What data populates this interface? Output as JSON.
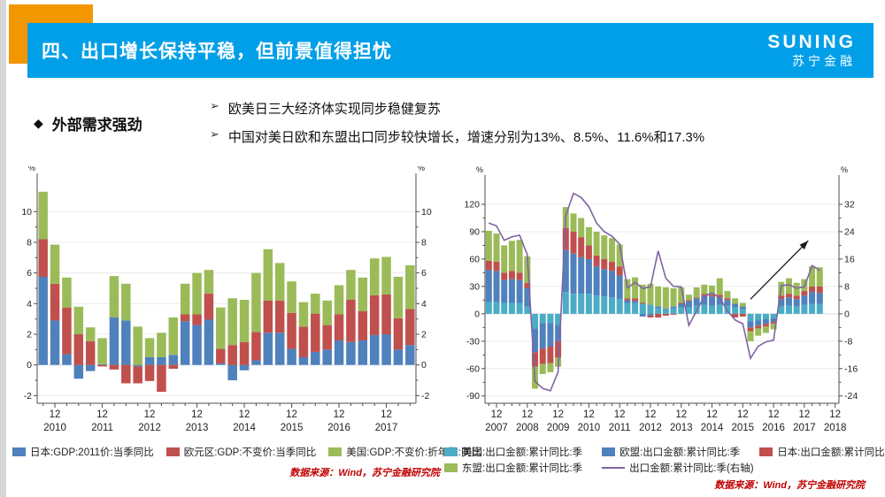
{
  "header": {
    "title": "四、出口增长保持平稳，但前景值得担忧",
    "logo_line1": "SUNING",
    "logo_line2": "苏宁金融"
  },
  "bullets": {
    "main_marker": "◆",
    "main": "外部需求强劲",
    "sub_marker": "➢",
    "items": [
      "欧美日三大经济体实现同步稳健复苏",
      "中国对美日欧和东盟出口同步较快增长，增速分别为13%、8.5%、11.6%和17.3%"
    ]
  },
  "sources": {
    "left": "数据来源：Wind，苏宁金融研究院",
    "right": "数据来源：Wind，苏宁金融研究院"
  },
  "colors": {
    "banner_blue": "#009fe8",
    "accent_orange": "#f39700",
    "source_red": "#c00000",
    "grid": "#ececec",
    "axis": "#4d4d4d"
  },
  "chart_data": [
    {
      "type": "bar",
      "stacked": true,
      "unit": "%",
      "categories_note": "quarterly, 2010Q3-2018Q2, December ticks labelled 12",
      "x_tick_label": "12",
      "x_years": [
        "2010",
        "2011",
        "2012",
        "2013",
        "2014",
        "2015",
        "2016",
        "2017"
      ],
      "dec_slots": [
        2,
        6,
        10,
        14,
        18,
        22,
        26,
        30
      ],
      "ylim": [
        -2.5,
        12.5
      ],
      "yticks_left": [
        -2,
        0,
        2,
        4,
        6,
        8,
        10
      ],
      "yticks_right": [
        -2,
        0,
        2,
        4,
        6,
        8,
        10
      ],
      "right_factor": 1,
      "series": [
        {
          "name": "日本:GDP:2011价:当季同比",
          "color": "#4f81bd",
          "values": [
            5.75,
            2.9,
            0.7,
            -0.9,
            -0.4,
            0.05,
            3.1,
            2.9,
            -0.1,
            0.5,
            0.5,
            0.65,
            2.85,
            2.6,
            2.95,
            0.1,
            -1.0,
            -0.35,
            0.3,
            2.1,
            2.1,
            1.05,
            0.5,
            0.85,
            1.0,
            1.6,
            1.5,
            1.6,
            1.95,
            2.0,
            1.0,
            1.3
          ]
        },
        {
          "name": "欧元区:GDP:不变价:当季同比",
          "color": "#c0504d",
          "values": [
            2.45,
            2.4,
            3.05,
            2.0,
            1.55,
            -0.1,
            -0.3,
            -1.2,
            -1.1,
            -1.05,
            -1.75,
            -0.25,
            0.45,
            0.7,
            1.7,
            0.95,
            1.3,
            1.5,
            1.85,
            2.1,
            2.1,
            2.35,
            2.0,
            2.5,
            1.6,
            1.7,
            2.75,
            1.9,
            2.6,
            2.6,
            2.05,
            2.35
          ]
        },
        {
          "name": "美国:GDP:不变价:折年数:同比",
          "color": "#9bbb59",
          "values": [
            3.1,
            2.55,
            1.95,
            1.8,
            0.9,
            1.7,
            2.7,
            2.4,
            2.5,
            1.25,
            1.6,
            2.45,
            2.0,
            2.7,
            1.55,
            2.7,
            3.05,
            2.75,
            3.85,
            3.35,
            2.45,
            2.05,
            1.6,
            1.3,
            1.6,
            1.9,
            1.95,
            2.2,
            2.4,
            2.45,
            2.7,
            2.85
          ]
        }
      ]
    },
    {
      "type": "bar+line",
      "stacked": true,
      "unit": "%",
      "categories_note": "quarterly, 2007Q3-2018Q2, December ticks labelled 12",
      "x_tick_label": "12",
      "x_years": [
        "2007",
        "2008",
        "2009",
        "2010",
        "2011",
        "2012",
        "2013",
        "2014",
        "2015",
        "2016",
        "2017",
        "2018"
      ],
      "dec_slots": [
        2,
        6,
        10,
        14,
        18,
        22,
        26,
        30,
        34,
        38,
        42,
        46
      ],
      "ylim": [
        -98,
        152
      ],
      "yticks_left": [
        -90,
        -60,
        -30,
        0,
        30,
        60,
        90,
        120
      ],
      "yticks_right": [
        -24,
        -16,
        -8,
        0,
        8,
        16,
        24,
        32
      ],
      "right_factor": 3.75,
      "series": [
        {
          "name": "美国:出口金额:累计同比:季",
          "color": "#4bacc6",
          "values": [
            13,
            13,
            12,
            12,
            12,
            8,
            -16,
            -10,
            -10,
            -12,
            24,
            22,
            22,
            22,
            20,
            19,
            18,
            16,
            12,
            12,
            11,
            10,
            6,
            5,
            6,
            7,
            7,
            9,
            10,
            9,
            10,
            9,
            7,
            5,
            -8,
            -7,
            -6,
            -5,
            8,
            9,
            8,
            10,
            11,
            11
          ]
        },
        {
          "name": "欧盟:出口金额:累计同比:季",
          "color": "#4f81bd",
          "values": [
            35,
            34,
            25,
            26,
            25,
            20,
            -26,
            -28,
            -26,
            -18,
            46,
            44,
            40,
            38,
            32,
            30,
            29,
            26,
            3,
            2,
            -3,
            -2,
            2,
            1,
            2,
            4,
            7,
            8,
            10,
            10,
            8,
            6,
            4,
            3,
            -7,
            -6,
            -5,
            -4,
            8,
            9,
            8,
            10,
            13,
            12
          ]
        },
        {
          "name": "日本:出口金额:累计同比:季",
          "color": "#c0504d",
          "values": [
            10,
            10,
            8,
            9,
            8,
            6,
            -16,
            -17,
            -18,
            -18,
            24,
            24,
            22,
            15,
            12,
            11,
            10,
            10,
            2,
            3,
            1,
            -2,
            -4,
            -2,
            -1,
            1,
            1,
            1,
            2,
            2,
            3,
            2,
            -4,
            -3,
            -4,
            -3,
            -3,
            -2,
            4,
            4,
            4,
            5,
            6,
            7
          ]
        },
        {
          "name": "东盟:出口金额:累计同比:季",
          "color": "#9bbb59",
          "values": [
            33,
            31,
            30,
            33,
            36,
            29,
            -24,
            -11,
            -10,
            -10,
            23,
            20,
            21,
            20,
            26,
            26,
            26,
            24,
            21,
            23,
            20,
            23,
            22,
            23,
            20,
            17,
            6,
            11,
            10,
            10,
            18,
            8,
            6,
            4,
            -11,
            -8,
            -7,
            -6,
            15,
            17,
            14,
            13,
            22,
            21
          ]
        }
      ],
      "line": {
        "name": "出口金额:累计同比:季(右轴)",
        "color": "#8064a2",
        "axis": "right",
        "values": [
          26.5,
          25.7,
          21.5,
          22.5,
          23,
          17.3,
          -19.7,
          -21.8,
          -22.5,
          -17,
          28.7,
          35.2,
          34,
          31.3,
          26.5,
          24,
          22.7,
          20.3,
          7.6,
          9.2,
          7.4,
          7.9,
          18.4,
          10.4,
          8,
          7.9,
          -3.4,
          0.9,
          5.1,
          6.1,
          4.7,
          0.9,
          -1.8,
          -2.9,
          -13,
          -9.5,
          -8.2,
          -7.7,
          8.2,
          8.5,
          7.5,
          7.9,
          14.1,
          12.7
        ]
      },
      "arrow": {
        "from_slot": 35,
        "from_val": 16,
        "to_slot": 42.5,
        "to_val": 80
      }
    }
  ]
}
